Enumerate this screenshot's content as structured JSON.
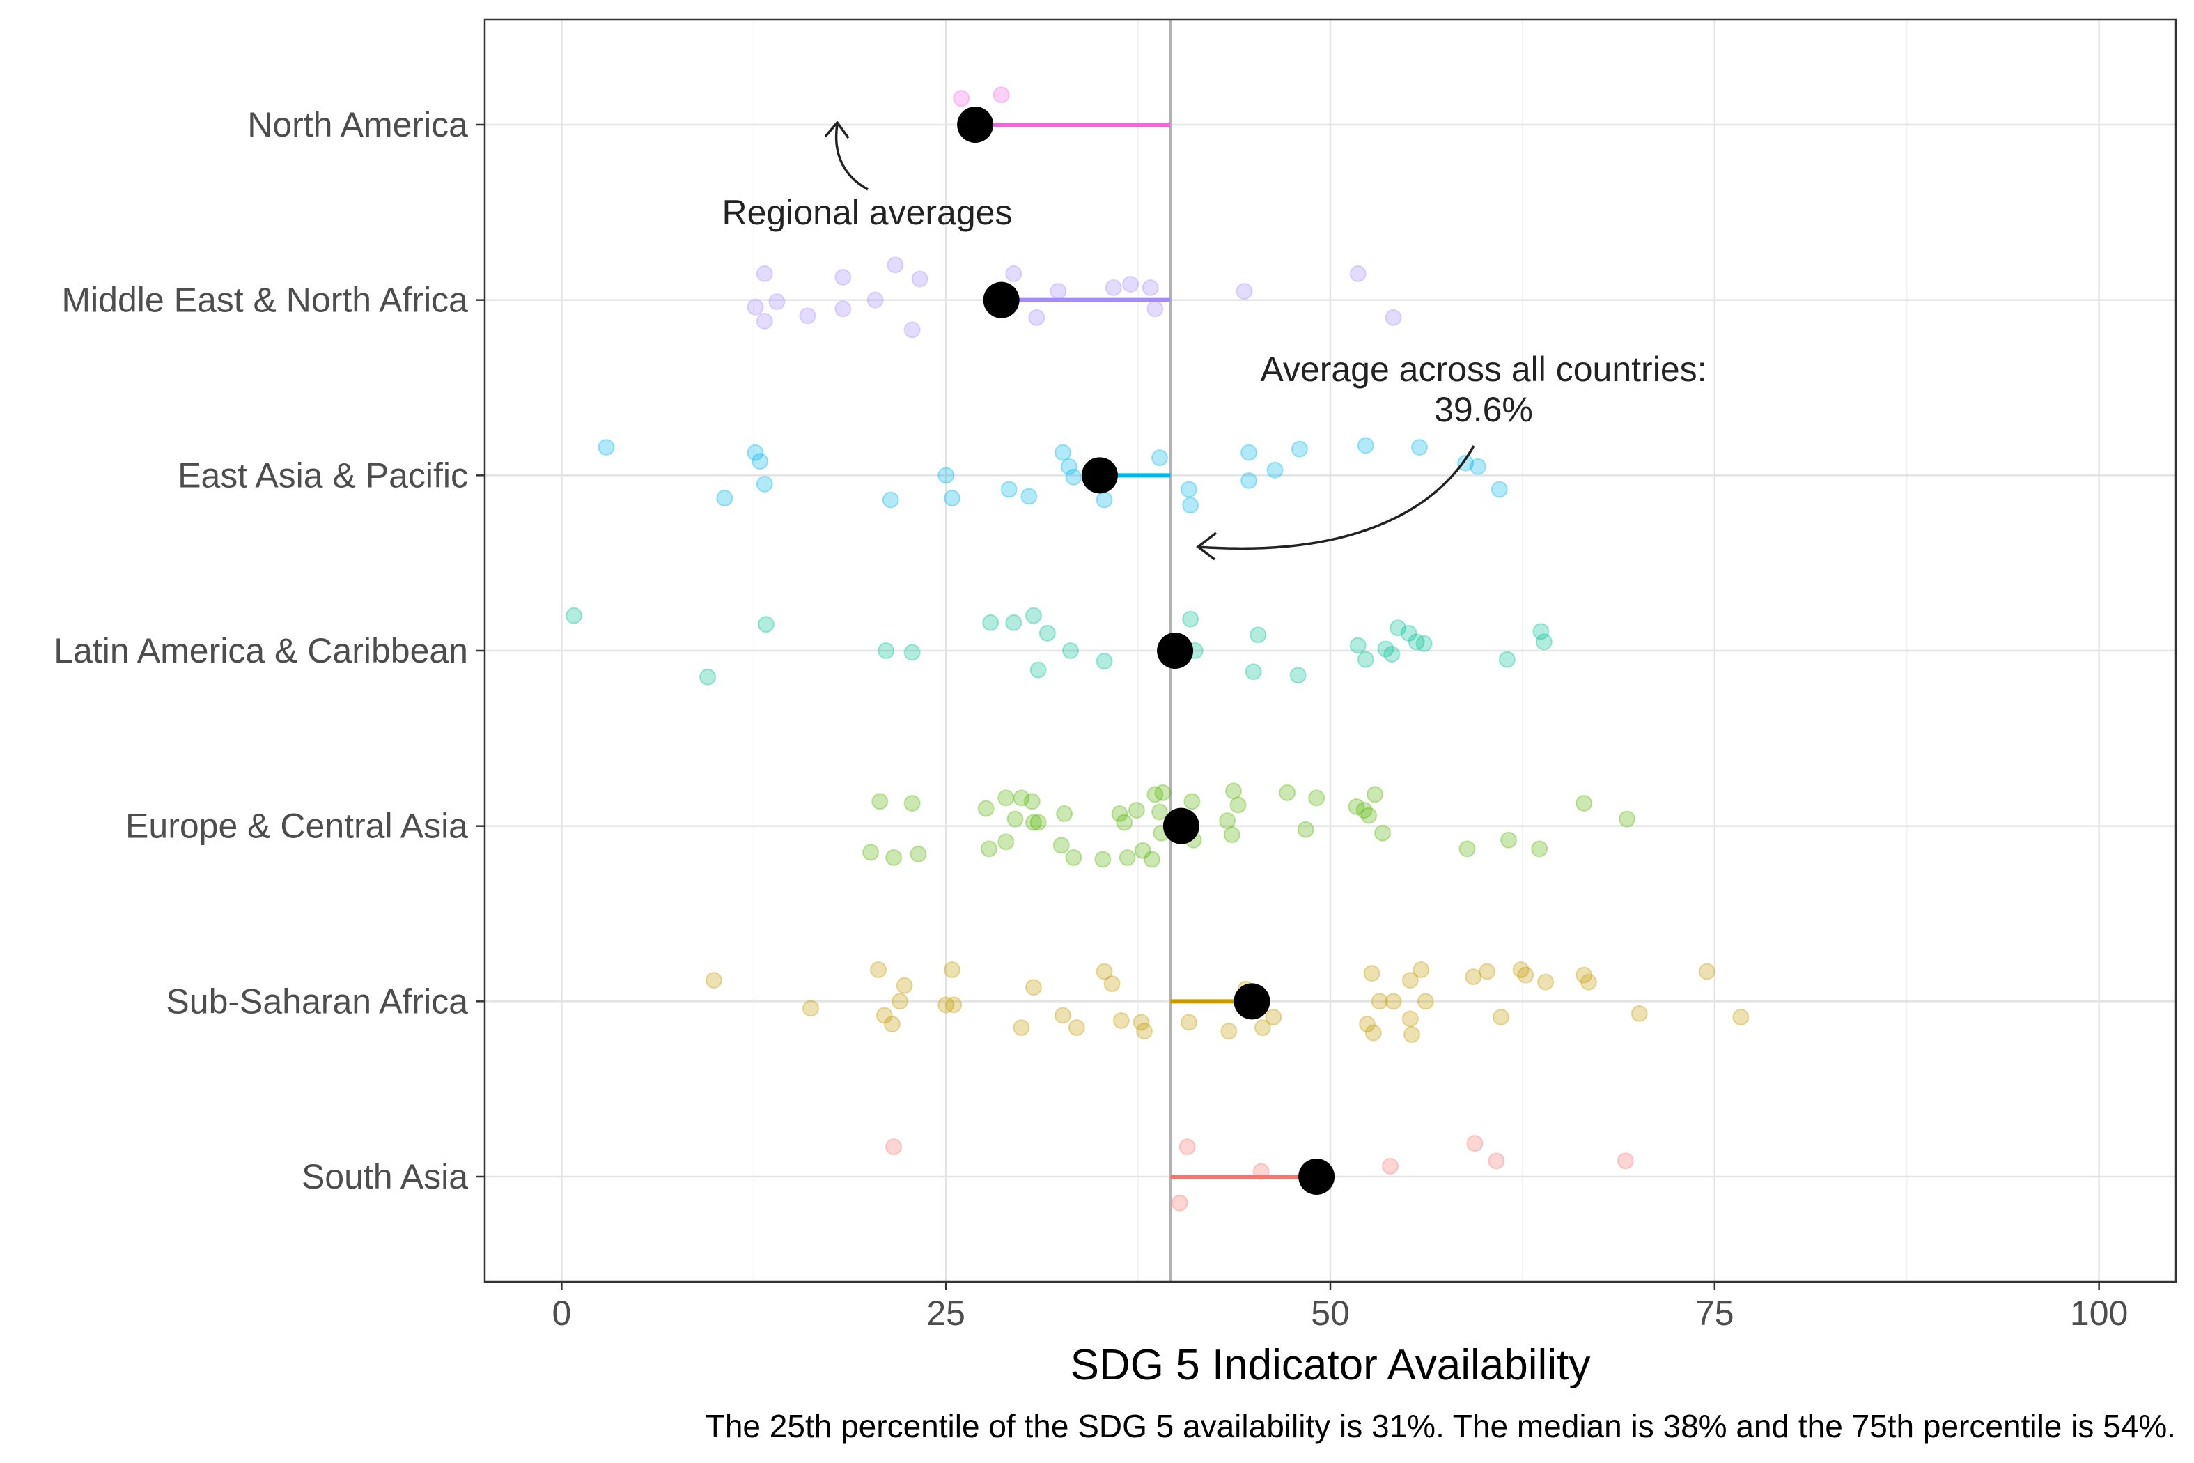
{
  "chart_data": {
    "type": "scatter",
    "xlabel": "SDG 5 Indicator Availability",
    "ylabel": "",
    "xlim": [
      -5,
      105
    ],
    "x_ticks": [
      "0",
      "25",
      "50",
      "75",
      "100"
    ],
    "grid": true,
    "legend": "none",
    "overall_average": 39.6,
    "caption": "The 25th percentile of the SDG 5 availability is 31%. The median is 38% and the 75th percentile is 54%.",
    "annotations": [
      {
        "text": "Regional averages"
      },
      {
        "text": "Average across all countries:",
        "text2": "39.6%"
      }
    ],
    "categories": [
      "North America",
      "Middle East & North Africa",
      "East Asia & Pacific",
      "Latin America & Caribbean",
      "Europe & Central Asia",
      "Sub-Saharan Africa",
      "South Asia"
    ],
    "series": [
      {
        "name": "North America",
        "color": "#F564E3",
        "average": 26.9,
        "points": [
          [
            26.0,
            0.15
          ],
          [
            28.6,
            0.17
          ]
        ]
      },
      {
        "name": "Middle East & North Africa",
        "color": "#A58AFF",
        "average": 28.6,
        "points": [
          [
            13.2,
            0.15
          ],
          [
            18.3,
            0.13
          ],
          [
            21.7,
            0.2
          ],
          [
            23.3,
            0.12
          ],
          [
            29.4,
            0.15
          ],
          [
            51.8,
            0.15
          ],
          [
            18.3,
            -0.05
          ],
          [
            12.6,
            -0.04
          ],
          [
            14.0,
            -0.01
          ],
          [
            20.4,
            0.0
          ],
          [
            32.3,
            0.05
          ],
          [
            35.9,
            0.07
          ],
          [
            37.0,
            0.09
          ],
          [
            38.3,
            0.07
          ],
          [
            44.4,
            0.05
          ],
          [
            13.2,
            -0.12
          ],
          [
            16.0,
            -0.09
          ],
          [
            22.8,
            -0.17
          ],
          [
            30.9,
            -0.1
          ],
          [
            38.6,
            -0.05
          ],
          [
            54.1,
            -0.1
          ]
        ]
      },
      {
        "name": "East Asia & Pacific",
        "color": "#00B6EB",
        "average": 35.0,
        "points": [
          [
            2.9,
            0.16
          ],
          [
            12.6,
            0.13
          ],
          [
            12.9,
            0.08
          ],
          [
            13.2,
            -0.05
          ],
          [
            10.6,
            -0.13
          ],
          [
            21.4,
            -0.14
          ],
          [
            25.0,
            0.0
          ],
          [
            25.4,
            -0.13
          ],
          [
            29.1,
            -0.08
          ],
          [
            30.4,
            -0.12
          ],
          [
            32.6,
            0.13
          ],
          [
            33.0,
            0.05
          ],
          [
            33.3,
            -0.01
          ],
          [
            35.3,
            -0.14
          ],
          [
            38.9,
            0.1
          ],
          [
            40.8,
            -0.08
          ],
          [
            40.9,
            -0.17
          ],
          [
            44.7,
            0.13
          ],
          [
            44.7,
            -0.03
          ],
          [
            46.4,
            0.03
          ],
          [
            48.0,
            0.15
          ],
          [
            52.3,
            0.17
          ],
          [
            55.8,
            0.16
          ],
          [
            58.8,
            0.07
          ],
          [
            59.6,
            0.05
          ],
          [
            61.0,
            -0.08
          ]
        ]
      },
      {
        "name": "Latin America & Caribbean",
        "color": "#00C094",
        "average": 39.9,
        "points": [
          [
            0.8,
            0.2
          ],
          [
            13.3,
            0.15
          ],
          [
            9.5,
            -0.15
          ],
          [
            21.1,
            0.0
          ],
          [
            22.8,
            -0.01
          ],
          [
            27.9,
            0.16
          ],
          [
            29.4,
            0.16
          ],
          [
            30.7,
            0.2
          ],
          [
            31.6,
            0.1
          ],
          [
            31.0,
            -0.11
          ],
          [
            33.1,
            0.0
          ],
          [
            35.3,
            -0.06
          ],
          [
            40.9,
            0.18
          ],
          [
            41.2,
            0.0
          ],
          [
            45.3,
            0.09
          ],
          [
            45.0,
            -0.12
          ],
          [
            47.9,
            -0.14
          ],
          [
            51.8,
            0.03
          ],
          [
            52.3,
            -0.05
          ],
          [
            53.6,
            0.01
          ],
          [
            54.0,
            -0.02
          ],
          [
            54.4,
            0.13
          ],
          [
            55.1,
            0.1
          ],
          [
            55.6,
            0.05
          ],
          [
            56.1,
            0.04
          ],
          [
            61.5,
            -0.05
          ],
          [
            63.7,
            0.11
          ],
          [
            63.9,
            0.05
          ]
        ]
      },
      {
        "name": "Europe & Central Asia",
        "color": "#53B400",
        "average": 40.3,
        "points": [
          [
            20.7,
            0.14
          ],
          [
            22.8,
            0.13
          ],
          [
            20.1,
            -0.15
          ],
          [
            21.6,
            -0.18
          ],
          [
            23.2,
            -0.16
          ],
          [
            27.6,
            0.1
          ],
          [
            28.9,
            0.16
          ],
          [
            29.9,
            0.16
          ],
          [
            30.6,
            0.14
          ],
          [
            29.5,
            0.04
          ],
          [
            30.7,
            0.02
          ],
          [
            31.0,
            0.02
          ],
          [
            32.7,
            0.07
          ],
          [
            27.8,
            -0.13
          ],
          [
            28.9,
            -0.09
          ],
          [
            32.5,
            -0.11
          ],
          [
            33.3,
            -0.18
          ],
          [
            35.2,
            -0.19
          ],
          [
            36.3,
            0.07
          ],
          [
            36.6,
            0.02
          ],
          [
            37.4,
            0.09
          ],
          [
            38.6,
            0.18
          ],
          [
            39.1,
            0.19
          ],
          [
            38.9,
            0.08
          ],
          [
            37.8,
            -0.14
          ],
          [
            36.8,
            -0.18
          ],
          [
            38.4,
            -0.19
          ],
          [
            39.0,
            -0.04
          ],
          [
            40.1,
            0.04
          ],
          [
            41.0,
            0.14
          ],
          [
            41.1,
            -0.08
          ],
          [
            43.7,
            0.2
          ],
          [
            43.3,
            0.03
          ],
          [
            43.6,
            -0.05
          ],
          [
            44.0,
            0.12
          ],
          [
            47.2,
            0.19
          ],
          [
            48.4,
            -0.02
          ],
          [
            49.1,
            0.16
          ],
          [
            51.7,
            0.11
          ],
          [
            52.2,
            0.09
          ],
          [
            52.5,
            0.06
          ],
          [
            53.4,
            -0.04
          ],
          [
            52.9,
            0.18
          ],
          [
            58.9,
            -0.13
          ],
          [
            61.6,
            -0.08
          ],
          [
            63.6,
            -0.13
          ],
          [
            66.5,
            0.13
          ],
          [
            69.3,
            0.04
          ]
        ]
      },
      {
        "name": "Sub-Saharan Africa",
        "color": "#C49A00",
        "average": 44.9,
        "points": [
          [
            9.9,
            0.12
          ],
          [
            20.6,
            0.18
          ],
          [
            22.3,
            0.09
          ],
          [
            21.0,
            -0.08
          ],
          [
            21.5,
            -0.13
          ],
          [
            22.0,
            0.0
          ],
          [
            16.2,
            -0.04
          ],
          [
            25.0,
            -0.02
          ],
          [
            25.4,
            0.18
          ],
          [
            25.5,
            -0.02
          ],
          [
            30.7,
            0.08
          ],
          [
            29.9,
            -0.15
          ],
          [
            32.6,
            -0.08
          ],
          [
            33.5,
            -0.15
          ],
          [
            35.3,
            0.17
          ],
          [
            35.8,
            0.1
          ],
          [
            36.4,
            -0.11
          ],
          [
            37.7,
            -0.12
          ],
          [
            37.9,
            -0.17
          ],
          [
            40.8,
            -0.12
          ],
          [
            43.4,
            -0.17
          ],
          [
            44.5,
            0.07
          ],
          [
            45.6,
            -0.15
          ],
          [
            46.3,
            -0.09
          ],
          [
            52.7,
            0.16
          ],
          [
            53.2,
            0.0
          ],
          [
            54.1,
            0.0
          ],
          [
            55.2,
            0.12
          ],
          [
            55.9,
            0.18
          ],
          [
            56.2,
            0.0
          ],
          [
            52.4,
            -0.13
          ],
          [
            52.8,
            -0.18
          ],
          [
            55.2,
            -0.1
          ],
          [
            55.3,
            -0.19
          ],
          [
            59.3,
            0.14
          ],
          [
            60.2,
            0.17
          ],
          [
            62.4,
            0.18
          ],
          [
            62.7,
            0.15
          ],
          [
            64.0,
            0.11
          ],
          [
            66.5,
            0.15
          ],
          [
            66.8,
            0.11
          ],
          [
            61.1,
            -0.09
          ],
          [
            70.1,
            -0.07
          ],
          [
            74.5,
            0.17
          ],
          [
            76.7,
            -0.09
          ]
        ]
      },
      {
        "name": "South Asia",
        "color": "#F8766D",
        "average": 49.1,
        "points": [
          [
            21.6,
            0.17
          ],
          [
            40.7,
            0.17
          ],
          [
            40.2,
            -0.15
          ],
          [
            45.5,
            0.03
          ],
          [
            53.9,
            0.06
          ],
          [
            59.4,
            0.19
          ],
          [
            60.8,
            0.09
          ],
          [
            69.2,
            0.09
          ]
        ]
      }
    ]
  }
}
